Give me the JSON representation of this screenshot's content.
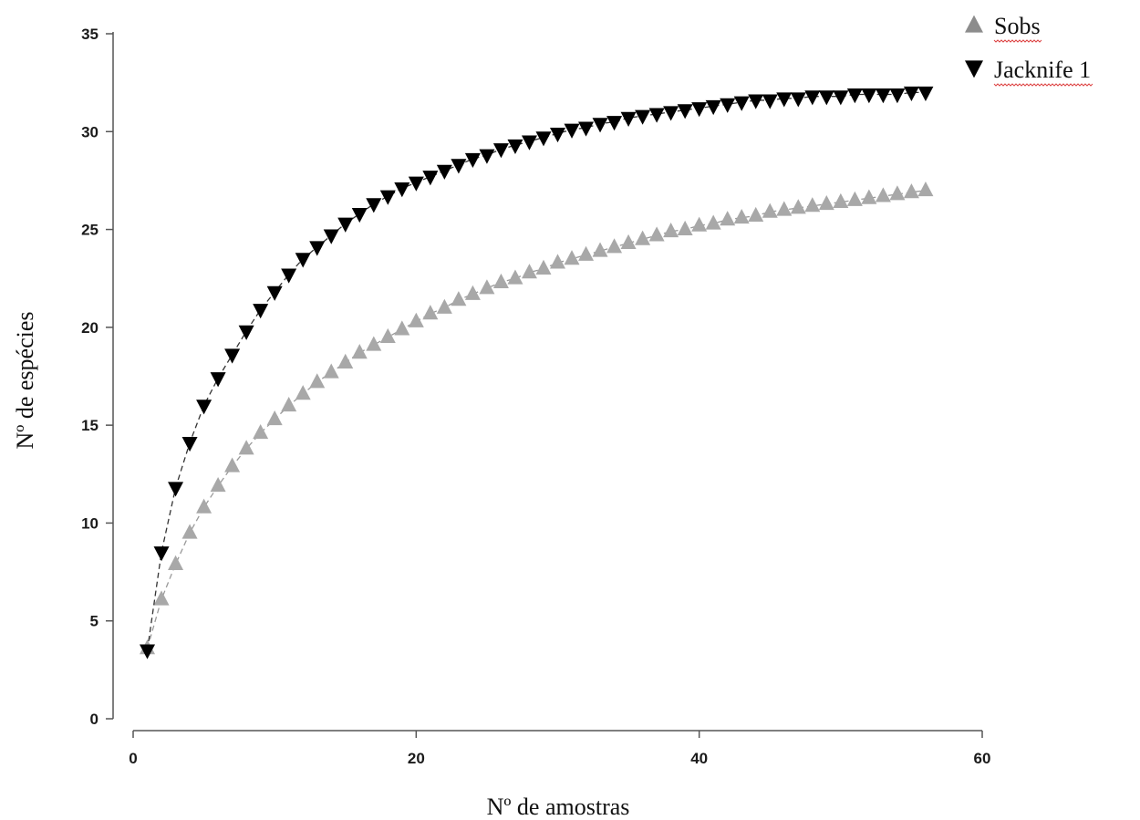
{
  "chart_data": {
    "type": "scatter",
    "title": "",
    "xlabel": "Nº de amostras",
    "ylabel": "Nº de espécies",
    "xlim": [
      0,
      60
    ],
    "ylim": [
      0,
      35
    ],
    "x_ticks": [
      0,
      20,
      40,
      60
    ],
    "y_ticks": [
      0,
      5,
      10,
      15,
      20,
      25,
      30,
      35
    ],
    "grid": false,
    "legend_position": "top-right",
    "series": [
      {
        "name": "Sobs",
        "marker": "triangle-up",
        "color": "#a8a8a8",
        "x": [
          1,
          2,
          3,
          4,
          5,
          6,
          7,
          8,
          9,
          10,
          11,
          12,
          13,
          14,
          15,
          16,
          17,
          18,
          19,
          20,
          21,
          22,
          23,
          24,
          25,
          26,
          27,
          28,
          29,
          30,
          31,
          32,
          33,
          34,
          35,
          36,
          37,
          38,
          39,
          40,
          41,
          42,
          43,
          44,
          45,
          46,
          47,
          48,
          49,
          50,
          51,
          52,
          53,
          54,
          55,
          56
        ],
        "values": [
          3.6,
          6.1,
          7.9,
          9.5,
          10.8,
          11.9,
          12.9,
          13.8,
          14.6,
          15.3,
          16.0,
          16.6,
          17.2,
          17.7,
          18.2,
          18.7,
          19.1,
          19.5,
          19.9,
          20.3,
          20.7,
          21.0,
          21.4,
          21.7,
          22.0,
          22.3,
          22.5,
          22.8,
          23.0,
          23.3,
          23.5,
          23.7,
          23.9,
          24.1,
          24.3,
          24.5,
          24.7,
          24.9,
          25.0,
          25.2,
          25.3,
          25.5,
          25.6,
          25.7,
          25.9,
          26.0,
          26.1,
          26.2,
          26.3,
          26.4,
          26.5,
          26.6,
          26.7,
          26.8,
          26.9,
          27.0
        ]
      },
      {
        "name": "Jacknife 1",
        "marker": "triangle-down",
        "color": "#000000",
        "x": [
          1,
          2,
          3,
          4,
          5,
          6,
          7,
          8,
          9,
          10,
          11,
          12,
          13,
          14,
          15,
          16,
          17,
          18,
          19,
          20,
          21,
          22,
          23,
          24,
          25,
          26,
          27,
          28,
          29,
          30,
          31,
          32,
          33,
          34,
          35,
          36,
          37,
          38,
          39,
          40,
          41,
          42,
          43,
          44,
          45,
          46,
          47,
          48,
          49,
          50,
          51,
          52,
          53,
          54,
          55,
          56
        ],
        "values": [
          3.5,
          8.5,
          11.8,
          14.1,
          16.0,
          17.4,
          18.6,
          19.8,
          20.9,
          21.8,
          22.7,
          23.5,
          24.1,
          24.7,
          25.3,
          25.8,
          26.3,
          26.7,
          27.1,
          27.4,
          27.7,
          28.0,
          28.3,
          28.6,
          28.8,
          29.1,
          29.3,
          29.5,
          29.7,
          29.9,
          30.1,
          30.2,
          30.4,
          30.5,
          30.7,
          30.8,
          30.9,
          31.0,
          31.1,
          31.2,
          31.3,
          31.4,
          31.5,
          31.6,
          31.6,
          31.7,
          31.7,
          31.8,
          31.8,
          31.8,
          31.9,
          31.9,
          31.9,
          31.9,
          32.0,
          32.0
        ]
      }
    ]
  }
}
